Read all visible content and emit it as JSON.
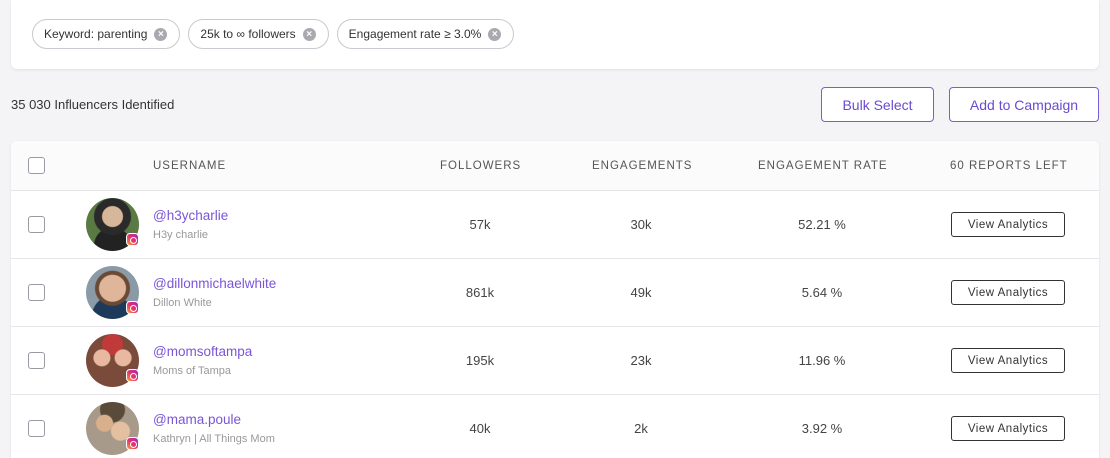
{
  "filters": [
    {
      "label": "Keyword: parenting"
    },
    {
      "label": "25k to ∞ followers"
    },
    {
      "label": "Engagement rate ≥ 3.0%"
    }
  ],
  "summary": {
    "count_text": "35 030 Influencers Identified"
  },
  "actions": {
    "bulk_select": "Bulk Select",
    "add_to_campaign": "Add to Campaign"
  },
  "table": {
    "headers": {
      "username": "USERNAME",
      "followers": "FOLLOWERS",
      "engagements": "ENGAGEMENTS",
      "engagement_rate": "ENGAGEMENT RATE",
      "reports_left": "60 REPORTS LEFT"
    },
    "rows": [
      {
        "handle": "@h3ycharlie",
        "name": "H3y charlie",
        "followers": "57k",
        "engagements": "30k",
        "rate": "52.21 %",
        "action": "View Analytics",
        "avatar_color": "#5a7a44",
        "platform_icon": "instagram-icon"
      },
      {
        "handle": "@dillonmichaelwhite",
        "name": "Dillon White",
        "followers": "861k",
        "engagements": "49k",
        "rate": "5.64 %",
        "action": "View Analytics",
        "avatar_color": "#8a9aa6",
        "platform_icon": "instagram-icon"
      },
      {
        "handle": "@momsoftampa",
        "name": "Moms of Tampa",
        "followers": "195k",
        "engagements": "23k",
        "rate": "11.96 %",
        "action": "View Analytics",
        "avatar_color": "#b0524a",
        "platform_icon": "instagram-icon"
      },
      {
        "handle": "@mama.poule",
        "name": "Kathryn | All Things Mom",
        "followers": "40k",
        "engagements": "2k",
        "rate": "3.92 %",
        "action": "View Analytics",
        "avatar_color": "#7d6a5c",
        "platform_icon": "instagram-icon"
      }
    ]
  },
  "colors": {
    "accent": "#7b55d6"
  }
}
